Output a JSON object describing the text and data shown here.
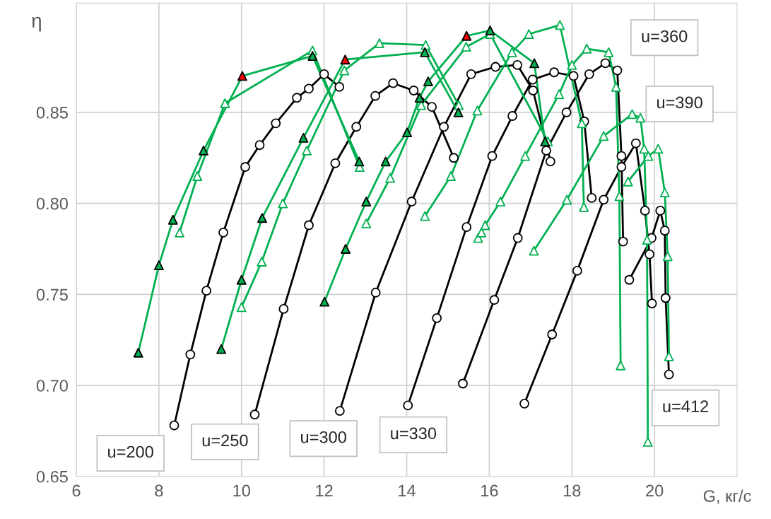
{
  "chart_data": {
    "type": "line",
    "xlabel": "G, кг/с",
    "ylabel": "η",
    "xlim": [
      6,
      22
    ],
    "xticks": [
      6,
      8,
      10,
      12,
      14,
      16,
      18,
      20
    ],
    "ylim": [
      0.65,
      0.91
    ],
    "yticks": [
      0.65,
      {
        "value": 0.7,
        "label": "0.70"
      },
      0.75,
      {
        "value": 0.8,
        "label": "0.80"
      },
      0.85
    ],
    "grid": true,
    "series": [
      {
        "color": "#000000",
        "marker": "circle",
        "x": [
          8.37,
          8.76,
          9.15,
          9.56,
          10.09,
          10.44,
          10.83,
          11.34,
          11.63,
          12.0,
          12.37
        ],
        "values": [
          0.678,
          0.717,
          0.752,
          0.784,
          0.82,
          0.832,
          0.844,
          0.858,
          0.863,
          0.871,
          0.864
        ],
        "colors": [
          "#ffffff",
          "#ffffff",
          "#ffffff",
          "#ffffff",
          "#ffffff",
          "#ffffff",
          "#ffffff",
          "#ffffff",
          "#ffffff",
          "#ffffff",
          "#ffffff"
        ]
      },
      {
        "color": "#000000",
        "marker": "circle",
        "x": [
          10.32,
          11.02,
          11.63,
          12.27,
          12.78,
          13.24,
          13.67,
          14.17,
          14.61,
          15.14
        ],
        "values": [
          0.684,
          0.742,
          0.788,
          0.822,
          0.842,
          0.859,
          0.866,
          0.862,
          0.853,
          0.825
        ],
        "colors": [
          "#ffffff",
          "#ffffff",
          "#ffffff",
          "#ffffff",
          "#ffffff",
          "#ffffff",
          "#ffffff",
          "#ffffff",
          "#ffffff",
          "#ffffff"
        ]
      },
      {
        "color": "#000000",
        "marker": "circle",
        "x": [
          12.38,
          13.25,
          14.12,
          14.9,
          15.56,
          16.15,
          16.68,
          17.06,
          17.48
        ],
        "values": [
          0.686,
          0.751,
          0.801,
          0.842,
          0.871,
          0.875,
          0.876,
          0.862,
          0.823
        ],
        "colors": [
          "#ffffff",
          "#ffffff",
          "#ffffff",
          "#ffffff",
          "#ffffff",
          "#ffffff",
          "#ffffff",
          "#ffffff",
          "#ffffff"
        ]
      },
      {
        "color": "#000000",
        "marker": "circle",
        "x": [
          14.03,
          14.73,
          15.45,
          16.07,
          16.56,
          17.05,
          17.57,
          18.04,
          18.3,
          18.48
        ],
        "values": [
          0.689,
          0.737,
          0.787,
          0.826,
          0.848,
          0.868,
          0.872,
          0.87,
          0.845,
          0.803
        ],
        "colors": [
          "#ffffff",
          "#ffffff",
          "#ffffff",
          "#ffffff",
          "#ffffff",
          "#ffffff",
          "#ffffff",
          "#ffffff",
          "#ffffff",
          "#ffffff"
        ]
      },
      {
        "color": "#000000",
        "marker": "circle",
        "x": [
          15.36,
          16.12,
          16.69,
          17.38,
          17.87,
          18.42,
          18.81,
          19.1,
          19.2,
          19.24
        ],
        "values": [
          0.701,
          0.747,
          0.781,
          0.829,
          0.85,
          0.871,
          0.877,
          0.873,
          0.826,
          0.779
        ],
        "colors": [
          "#ffffff",
          "#ffffff",
          "#ffffff",
          "#ffffff",
          "#ffffff",
          "#ffffff",
          "#ffffff",
          "#ffffff",
          "#ffffff",
          "#ffffff"
        ]
      },
      {
        "color": "#000000",
        "marker": "circle",
        "x": [
          16.85,
          17.52,
          18.13,
          18.77,
          19.2,
          19.55,
          19.77,
          19.88,
          19.94
        ],
        "values": [
          0.69,
          0.728,
          0.763,
          0.802,
          0.82,
          0.833,
          0.796,
          0.772,
          0.745
        ],
        "colors": [
          "#ffffff",
          "#ffffff",
          "#ffffff",
          "#ffffff",
          "#ffffff",
          "#ffffff",
          "#ffffff",
          "#ffffff",
          "#ffffff"
        ]
      },
      {
        "color": "#000000",
        "marker": "circle",
        "x": [
          19.39,
          19.93,
          20.14,
          20.25,
          20.27,
          20.35
        ],
        "values": [
          0.758,
          0.781,
          0.796,
          0.785,
          0.748,
          0.706
        ],
        "colors": [
          "#ffffff",
          "#ffffff",
          "#ffffff",
          "#ffffff",
          "#ffffff",
          "#ffffff"
        ]
      },
      {
        "color": "#00b050",
        "marker": "triangle",
        "x": [
          8.5,
          8.93,
          9.6,
          11.72,
          12.86
        ],
        "values": [
          0.784,
          0.815,
          0.855,
          0.884,
          0.82
        ],
        "colors": [
          "#ffffff",
          "#ffffff",
          "#ffffff",
          "#ffffff",
          "#ffffff"
        ]
      },
      {
        "color": "#00b050",
        "marker": "triangle",
        "x": [
          10.0,
          10.49,
          11.0,
          11.58,
          12.49,
          13.34,
          14.46,
          15.26
        ],
        "values": [
          0.743,
          0.768,
          0.8,
          0.829,
          0.873,
          0.888,
          0.887,
          0.854
        ],
        "colors": [
          "#ffffff",
          "#ffffff",
          "#ffffff",
          "#ffffff",
          "#ffffff",
          "#ffffff",
          "#ffffff",
          "#ffffff"
        ]
      },
      {
        "color": "#00b050",
        "marker": "triangle",
        "x": [
          13.02,
          13.6,
          14.35,
          15.44,
          16.02,
          17.42
        ],
        "values": [
          0.789,
          0.814,
          0.854,
          0.886,
          0.893,
          0.834
        ],
        "colors": [
          "#ffffff",
          "#ffffff",
          "#ffffff",
          "#ffffff",
          "#ffffff",
          "#ffffff"
        ]
      },
      {
        "color": "#00b050",
        "marker": "triangle",
        "x": [
          14.44,
          15.07,
          15.71,
          16.55,
          16.96,
          17.71,
          18.24,
          18.29
        ],
        "values": [
          0.793,
          0.815,
          0.851,
          0.883,
          0.893,
          0.898,
          0.844,
          0.798
        ],
        "colors": [
          "#ffffff",
          "#ffffff",
          "#ffffff",
          "#ffffff",
          "#ffffff",
          "#ffffff",
          "#ffffff",
          "#ffffff"
        ]
      },
      {
        "color": "#00b050",
        "marker": "triangle",
        "x": [
          15.73,
          15.81,
          15.9,
          16.27,
          16.87,
          17.69,
          18.0,
          18.36,
          18.89,
          19.07,
          19.15,
          19.18
        ],
        "values": [
          0.781,
          0.784,
          0.788,
          0.801,
          0.826,
          0.86,
          0.876,
          0.885,
          0.883,
          0.864,
          0.804,
          0.711
        ],
        "colors": [
          "#ffffff",
          "#ffffff",
          "#ffffff",
          "#ffffff",
          "#ffffff",
          "#ffffff",
          "#ffffff",
          "#ffffff",
          "#ffffff",
          "#ffffff",
          "#ffffff",
          "#ffffff"
        ]
      },
      {
        "color": "#00b050",
        "marker": "triangle",
        "x": [
          17.08,
          17.88,
          18.77,
          19.46,
          19.66,
          19.75,
          19.82,
          19.84
        ],
        "values": [
          0.774,
          0.802,
          0.837,
          0.849,
          0.847,
          0.83,
          0.78,
          0.669
        ],
        "colors": [
          "#ffffff",
          "#ffffff",
          "#ffffff",
          "#ffffff",
          "#ffffff",
          "#ffffff",
          "#ffffff",
          "#ffffff"
        ]
      },
      {
        "color": "#00b050",
        "marker": "triangle",
        "x": [
          19.36,
          19.85,
          20.09,
          20.25,
          20.32,
          20.35
        ],
        "values": [
          0.812,
          0.826,
          0.83,
          0.806,
          0.771,
          0.716
        ],
        "colors": [
          "#ffffff",
          "#ffffff",
          "#ffffff",
          "#ffffff",
          "#ffffff",
          "#ffffff"
        ]
      },
      {
        "color": "#00b050",
        "marker": "triangle",
        "x": [
          7.5,
          8.0,
          8.34,
          9.08,
          10.02,
          11.72,
          12.85
        ],
        "values": [
          0.718,
          0.766,
          0.791,
          0.829,
          0.87,
          0.881,
          0.823
        ],
        "colors": [
          "#00b050",
          "#00b050",
          "#00b050",
          "#00b050",
          "#ff0000",
          "#00b050",
          "#00b050"
        ]
      },
      {
        "color": "#00b050",
        "marker": "triangle",
        "x": [
          9.51,
          10.0,
          10.5,
          11.5,
          12.51,
          14.44,
          15.25
        ],
        "values": [
          0.72,
          0.758,
          0.792,
          0.836,
          0.879,
          0.883,
          0.85
        ],
        "colors": [
          "#00b050",
          "#00b050",
          "#00b050",
          "#00b050",
          "#ff0000",
          "#00b050",
          "#00b050"
        ]
      },
      {
        "color": "#00b050",
        "marker": "triangle",
        "x": [
          12.01,
          12.52,
          13.02,
          13.49,
          14.01,
          14.31,
          14.52,
          15.45,
          16.02,
          17.09,
          17.35
        ],
        "values": [
          0.746,
          0.775,
          0.801,
          0.823,
          0.839,
          0.858,
          0.867,
          0.892,
          0.895,
          0.877,
          0.834
        ],
        "colors": [
          "#00b050",
          "#00b050",
          "#00b050",
          "#00b050",
          "#00b050",
          "#00b050",
          "#00b050",
          "#ff0000",
          "#00b050",
          "#00b050",
          "#00b050"
        ]
      }
    ],
    "annotations": [
      "u=200",
      "u=250",
      "u=300",
      "u=330",
      "u=360",
      "u=390",
      "u=412"
    ]
  }
}
